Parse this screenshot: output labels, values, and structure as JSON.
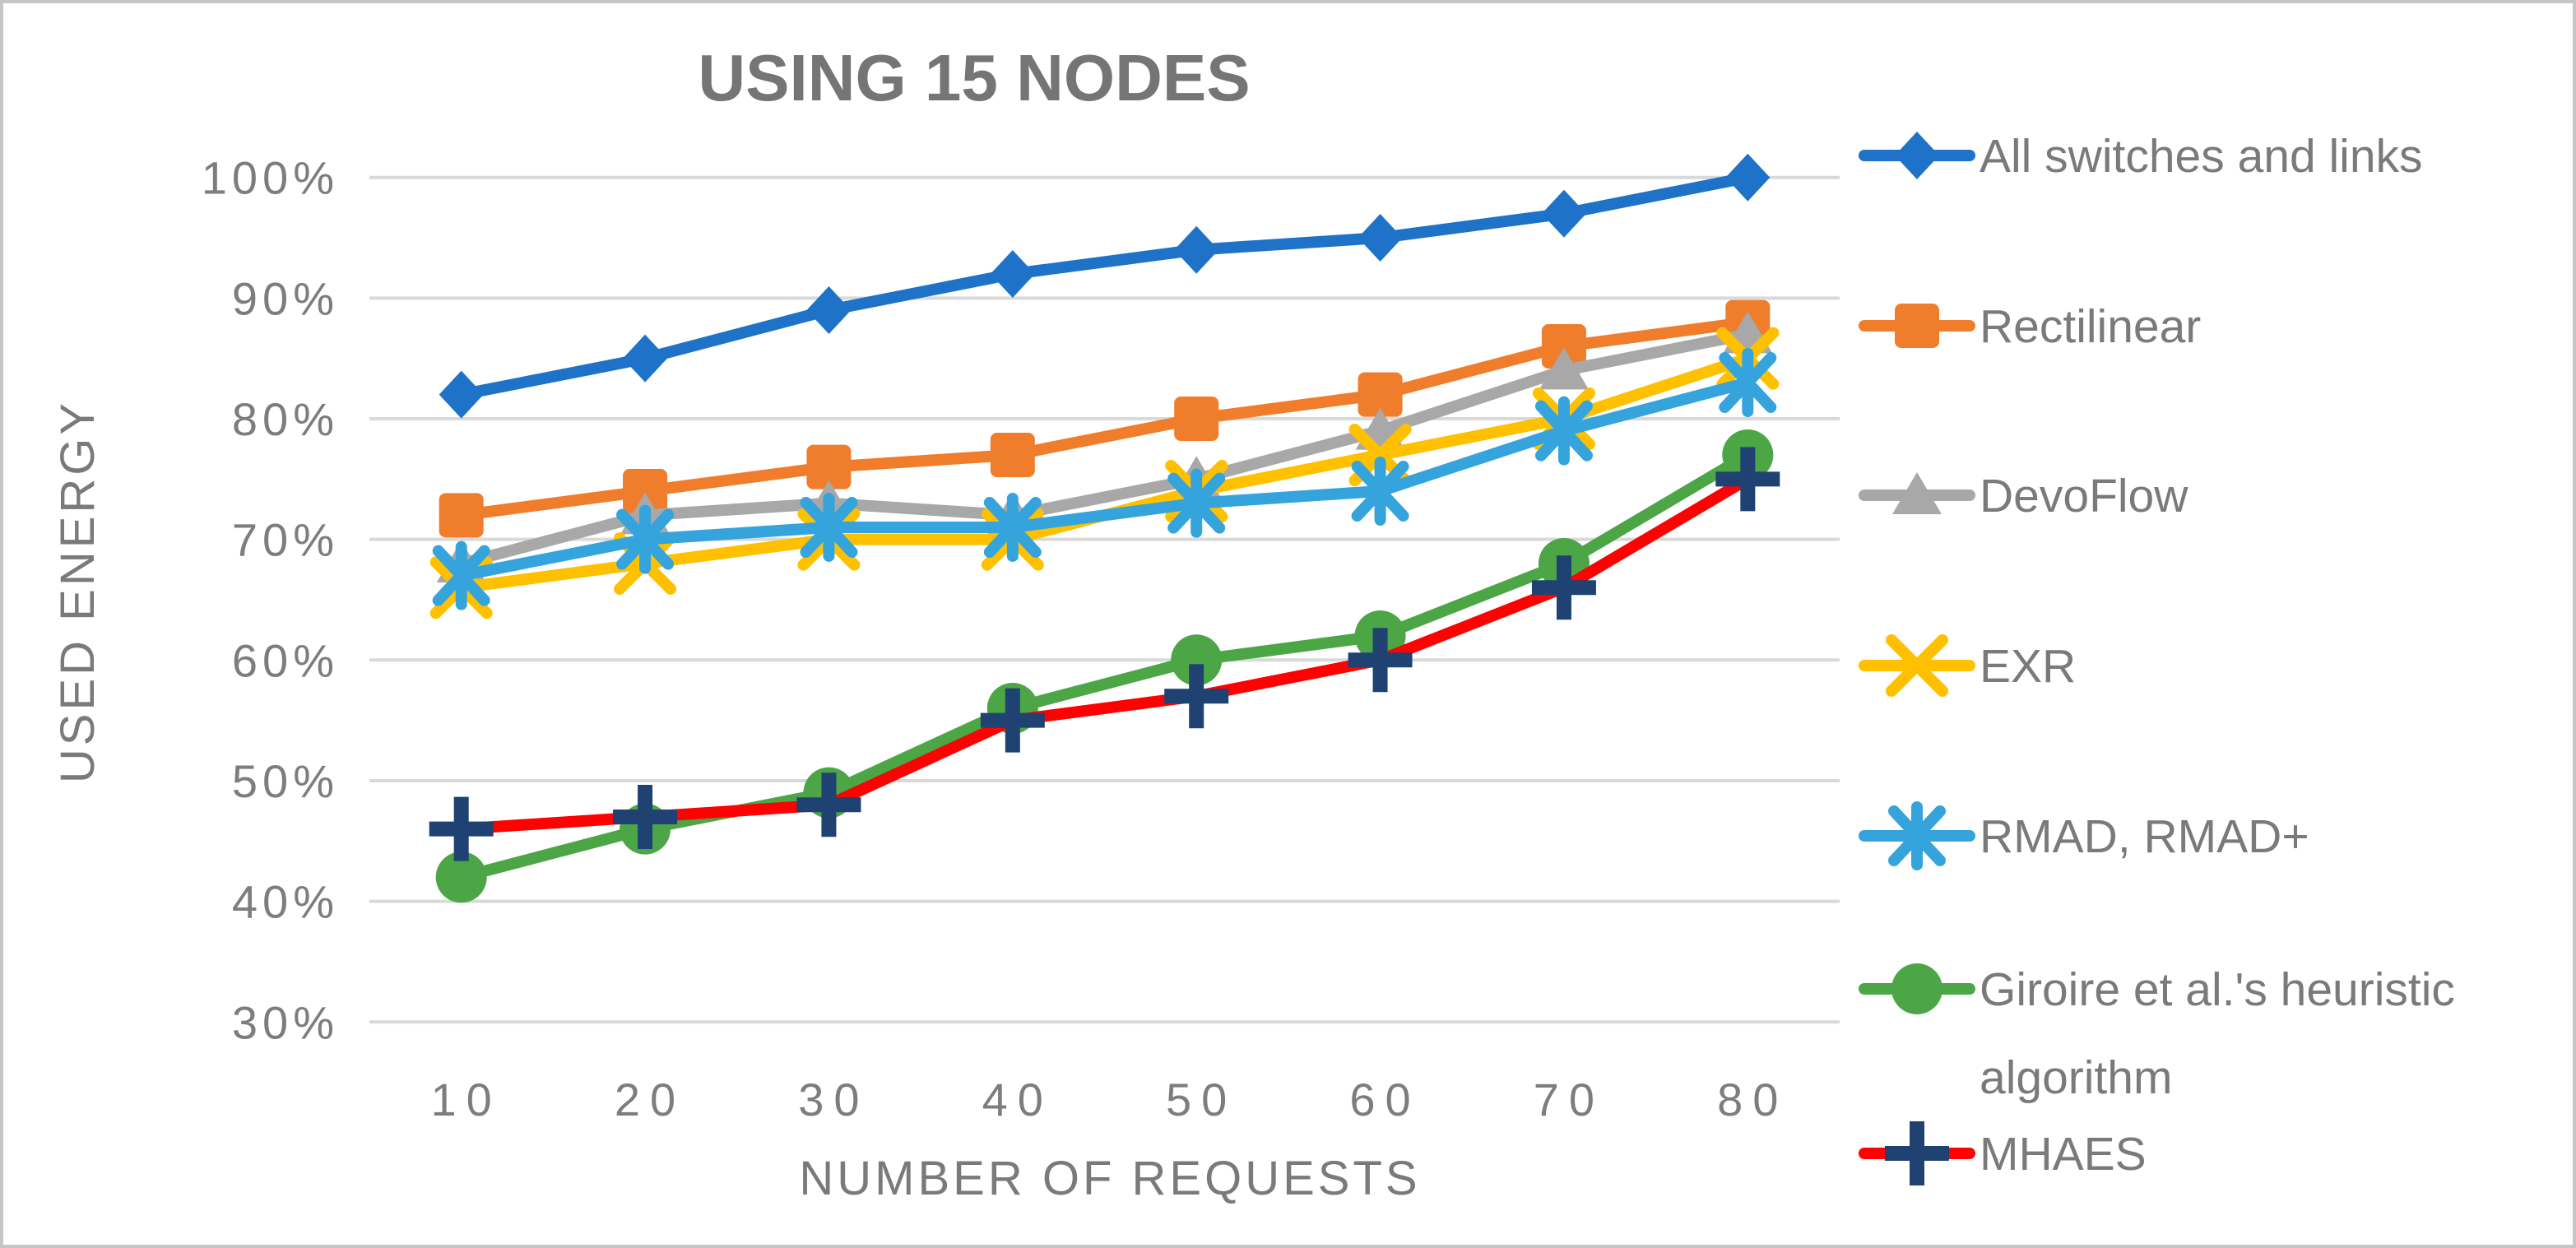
{
  "chart_data": {
    "type": "line",
    "title": "USING 15 NODES",
    "xlabel": "NUMBER OF REQUESTS",
    "ylabel": "USED ENERGY",
    "categories": [
      "10",
      "20",
      "30",
      "40",
      "50",
      "60",
      "70",
      "80"
    ],
    "y_axis": {
      "min": 30,
      "max": 100,
      "step": 10,
      "tick_suffix": "%"
    },
    "y_ticks": [
      "100%",
      "90%",
      "80%",
      "70%",
      "60%",
      "50%",
      "40%",
      "30%"
    ],
    "grid": "horizontal",
    "legend_position": "right",
    "colors": {
      "grid": "#d9d9d9",
      "text": "#7a7a7a",
      "title": "#757575",
      "border": "#c6c6c6"
    },
    "series": [
      {
        "name": "All switches and links",
        "color": "#1e73c8",
        "marker": "diamond",
        "values": [
          82,
          85,
          89,
          92,
          94,
          95,
          97,
          100
        ]
      },
      {
        "name": "Rectilinear",
        "color": "#f07d2b",
        "marker": "square",
        "values": [
          72,
          74,
          76,
          77,
          80,
          82,
          86,
          88
        ]
      },
      {
        "name": "DevoFlow",
        "color": "#a8a8a8",
        "marker": "triangle",
        "values": [
          68,
          72,
          73,
          72,
          75,
          79,
          84,
          87
        ]
      },
      {
        "name": "EXR",
        "color": "#ffc000",
        "marker": "x",
        "values": [
          66,
          68,
          70,
          70,
          74,
          77,
          80,
          85
        ]
      },
      {
        "name": "RMAD, RMAD+",
        "color": "#35a4dc",
        "marker": "asterisk",
        "values": [
          67,
          70,
          71,
          71,
          73,
          74,
          79,
          83
        ]
      },
      {
        "name": "Giroire et al.'s heuristic algorithm",
        "color": "#4ca646",
        "marker": "circle",
        "legend_lines": [
          "Giroire et al.'s heuristic",
          "algorithm"
        ],
        "values": [
          42,
          46,
          49,
          56,
          60,
          62,
          68,
          77
        ]
      },
      {
        "name": "MHAES",
        "color": "#fe0101",
        "marker": "plus",
        "marker_color": "#1f4273",
        "values": [
          46,
          47,
          48,
          55,
          57,
          60,
          66,
          75
        ]
      }
    ]
  }
}
